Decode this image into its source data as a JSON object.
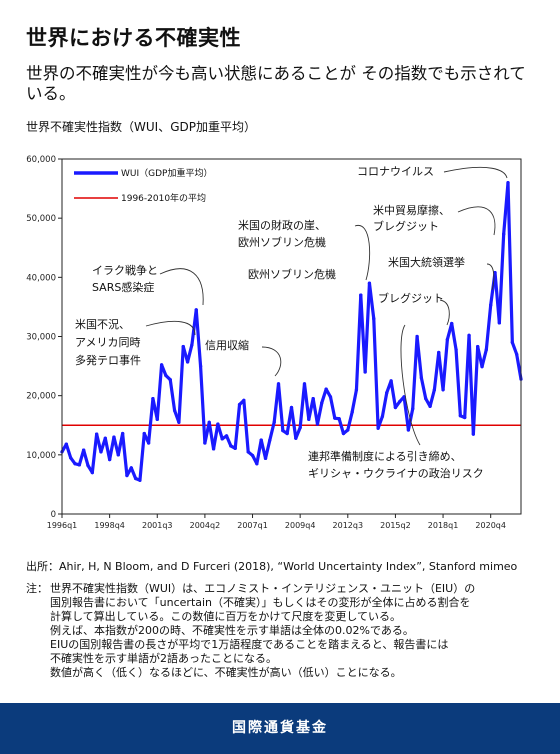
{
  "title": "世界における不確実性",
  "subtitle": "世界の不確実性が今も高い状態にあることが その指数でも示されている。",
  "chart_label": "世界不確実性指数（WUI、GDP加重平均）",
  "source": "出所：Ahir, H, N Bloom, and D Furceri (2018), “World Uncertainty Index”, Stanford mimeo",
  "note_head": "注：",
  "note_lines": [
    "世界不確実性指数（WUI）は、エコノミスト・インテリジェンス・ユニット（EIU）の",
    "国別報告書において「uncertain（不確実）」もしくはその変形が全体に占める割合を",
    "計算して算出している。この数値に百万をかけて尺度を変更している。",
    "例えば、本指数が200の時、不確実性を示す単語は全体の0.02%である。",
    "EIUの国別報告書の長さが平均で1万語程度であることを踏まえると、報告書には",
    "不確実性を示す単語が2語あったことになる。",
    "数値が高く（低く）なるほどに、不確実性が高い（低い）ことになる。"
  ],
  "footer": "国際通貨基金",
  "colors": {
    "series": "#1a1aff",
    "average": "#e00000",
    "footer": "#0b3b7c"
  },
  "chart_data": {
    "type": "line",
    "grid": false,
    "legend_position": "top-left",
    "x_ticks": [
      "1996q1",
      "1998q4",
      "2001q3",
      "2004q2",
      "2007q1",
      "2009q4",
      "2012q3",
      "2015q2",
      "2018q1",
      "2020q4"
    ],
    "ylim": [
      0,
      60000
    ],
    "y_ticks": [
      "0",
      "10,000",
      "20,000",
      "30,000",
      "40,000",
      "50,000",
      "60,000"
    ],
    "series": [
      {
        "name": "WUI（GDP加重平均）",
        "values": [
          10500,
          11800,
          9500,
          8500,
          8300,
          10800,
          8200,
          7000,
          13500,
          10500,
          12800,
          9200,
          13000,
          10000,
          13600,
          6500,
          7800,
          6000,
          5700,
          13600,
          12000,
          19500,
          16000,
          25200,
          23400,
          22700,
          17500,
          15500,
          28300,
          25700,
          28600,
          34500,
          25000,
          12000,
          15500,
          11000,
          15200,
          12700,
          13200,
          11500,
          11100,
          18500,
          19200,
          10500,
          9900,
          8500,
          12500,
          9400,
          12500,
          15500,
          22000,
          14100,
          13600,
          18000,
          12800,
          14600,
          22000,
          16000,
          19500,
          15200,
          18800,
          21100,
          19800,
          16200,
          16100,
          13600,
          14200,
          17200,
          21000,
          37000,
          24000,
          39000,
          33000,
          14500,
          16500,
          20500,
          22500,
          18000,
          19000,
          19800,
          14200,
          17800,
          30000,
          23000,
          19500,
          18200,
          21000,
          27300,
          21000,
          29500,
          32200,
          27800,
          16600,
          16300,
          30200,
          13500,
          28300,
          24900,
          27800,
          35300,
          40800,
          32300,
          47300,
          56000,
          29000,
          27000,
          22800
        ],
        "color": "#1a1aff"
      },
      {
        "name": "1996-2010年の平均",
        "values": [
          15000,
          15000
        ],
        "color": "#e00000"
      }
    ],
    "annotations": [
      "イラク戦争と SARS感染症",
      "米国不況、 アメリカ同時 多発テロ事件",
      "信用収縮",
      "米国の財政の崖、 欧州ソブリン危機",
      "欧州ソブリン危機",
      "コロナウイルス",
      "米中貿易摩擦、 ブレグジット",
      "米国大統領選挙",
      "ブレグジット",
      "連邦準備制度による引き締め、 ギリシャ・ウクライナの政治リスク"
    ]
  }
}
